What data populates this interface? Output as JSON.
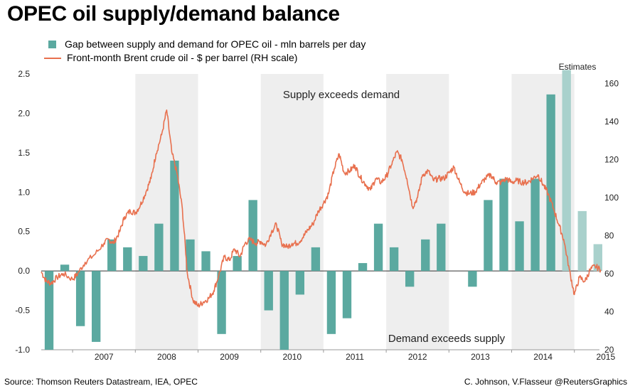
{
  "title": "OPEC oil supply/demand balance",
  "legend": {
    "bars": "Gap between supply and demand for OPEC oil - mln barrels per day",
    "line": "Front-month Brent crude oil - $ per barrel (RH scale)"
  },
  "footer": {
    "source": "Source: Thomson Reuters Datastream, IEA, OPEC",
    "credit": "C. Johnson, V.Flasseur @ReutersGraphics"
  },
  "chart_data": {
    "type": "bar",
    "title": "OPEC oil supply/demand balance",
    "x_range": [
      2006.5,
      2015.4
    ],
    "years": [
      "2007",
      "2008",
      "2009",
      "2010",
      "2011",
      "2012",
      "2013",
      "2014",
      "2015"
    ],
    "shaded_years": [
      2008,
      2010,
      2012,
      2014
    ],
    "estimates_from": 2015.0,
    "left_axis": {
      "label": "mln barrels per day",
      "ylim": [
        -1.0,
        2.5
      ],
      "ticks": [
        "2.5",
        "2.0",
        "1.5",
        "1.0",
        "0.5",
        "0.0",
        "-0.5",
        "-1.0"
      ]
    },
    "right_axis": {
      "label": "$ per barrel",
      "ylim": [
        20,
        165
      ],
      "ticks": [
        "160",
        "140",
        "120",
        "100",
        "80",
        "60",
        "40",
        "20"
      ]
    },
    "annotations": {
      "supply": "Supply exceeds demand",
      "demand": "Demand exceeds supply",
      "estimates": "Estimates"
    },
    "series": [
      {
        "name": "Gap between supply and demand for OPEC oil - mln barrels per day",
        "type": "bar",
        "color": "#5ba9a0",
        "estimate_color": "#a9d1cc",
        "points": [
          {
            "x": 2006.625,
            "v": -1.0
          },
          {
            "x": 2006.875,
            "v": 0.08
          },
          {
            "x": 2007.125,
            "v": -0.7
          },
          {
            "x": 2007.375,
            "v": -0.9
          },
          {
            "x": 2007.625,
            "v": 0.4
          },
          {
            "x": 2007.875,
            "v": 0.3
          },
          {
            "x": 2008.125,
            "v": 0.19
          },
          {
            "x": 2008.375,
            "v": 0.6
          },
          {
            "x": 2008.625,
            "v": 1.4
          },
          {
            "x": 2008.875,
            "v": 0.4
          },
          {
            "x": 2009.125,
            "v": 0.25
          },
          {
            "x": 2009.375,
            "v": -0.8
          },
          {
            "x": 2009.625,
            "v": 0.19
          },
          {
            "x": 2009.875,
            "v": 0.9
          },
          {
            "x": 2010.125,
            "v": -0.5
          },
          {
            "x": 2010.375,
            "v": -1.0
          },
          {
            "x": 2010.625,
            "v": -0.3
          },
          {
            "x": 2010.875,
            "v": 0.3
          },
          {
            "x": 2011.125,
            "v": -0.8
          },
          {
            "x": 2011.375,
            "v": -0.6
          },
          {
            "x": 2011.625,
            "v": 0.1
          },
          {
            "x": 2011.875,
            "v": 0.6
          },
          {
            "x": 2012.125,
            "v": 0.3
          },
          {
            "x": 2012.375,
            "v": -0.2
          },
          {
            "x": 2012.625,
            "v": 0.4
          },
          {
            "x": 2012.875,
            "v": 0.6
          },
          {
            "x": 2013.375,
            "v": -0.2
          },
          {
            "x": 2013.625,
            "v": 0.9
          },
          {
            "x": 2013.875,
            "v": 1.17
          },
          {
            "x": 2014.125,
            "v": 0.63
          },
          {
            "x": 2014.375,
            "v": 1.17
          },
          {
            "x": 2014.625,
            "v": 2.24
          },
          {
            "x": 2014.875,
            "v": 2.55,
            "estimate": true
          },
          {
            "x": 2015.125,
            "v": 0.76,
            "estimate": true
          },
          {
            "x": 2015.375,
            "v": 0.34,
            "estimate": true
          }
        ]
      },
      {
        "name": "Front-month Brent crude oil - $ per barrel (RH scale)",
        "type": "line",
        "axis": "right",
        "color": "#e8704e",
        "points": [
          [
            2006.5,
            61
          ],
          [
            2006.58,
            56
          ],
          [
            2006.66,
            55
          ],
          [
            2006.75,
            58
          ],
          [
            2006.85,
            60
          ],
          [
            2007.0,
            57
          ],
          [
            2007.08,
            60
          ],
          [
            2007.2,
            66
          ],
          [
            2007.35,
            70
          ],
          [
            2007.5,
            76
          ],
          [
            2007.58,
            78
          ],
          [
            2007.65,
            76
          ],
          [
            2007.75,
            82
          ],
          [
            2007.83,
            90
          ],
          [
            2007.92,
            93
          ],
          [
            2008.0,
            92
          ],
          [
            2008.08,
            96
          ],
          [
            2008.17,
            103
          ],
          [
            2008.25,
            110
          ],
          [
            2008.33,
            123
          ],
          [
            2008.42,
            133
          ],
          [
            2008.5,
            146
          ],
          [
            2008.58,
            124
          ],
          [
            2008.67,
            112
          ],
          [
            2008.75,
            94
          ],
          [
            2008.83,
            60
          ],
          [
            2008.92,
            46
          ],
          [
            2009.0,
            43
          ],
          [
            2009.08,
            45
          ],
          [
            2009.17,
            47
          ],
          [
            2009.25,
            51
          ],
          [
            2009.33,
            59
          ],
          [
            2009.42,
            69
          ],
          [
            2009.5,
            67
          ],
          [
            2009.58,
            73
          ],
          [
            2009.67,
            69
          ],
          [
            2009.75,
            76
          ],
          [
            2009.83,
            78
          ],
          [
            2009.92,
            76
          ],
          [
            2010.0,
            77
          ],
          [
            2010.08,
            75
          ],
          [
            2010.17,
            82
          ],
          [
            2010.25,
            86
          ],
          [
            2010.33,
            76
          ],
          [
            2010.42,
            74
          ],
          [
            2010.5,
            76
          ],
          [
            2010.58,
            76
          ],
          [
            2010.67,
            79
          ],
          [
            2010.75,
            83
          ],
          [
            2010.83,
            86
          ],
          [
            2010.92,
            93
          ],
          [
            2011.0,
            97
          ],
          [
            2011.08,
            102
          ],
          [
            2011.17,
            115
          ],
          [
            2011.25,
            123
          ],
          [
            2011.33,
            113
          ],
          [
            2011.42,
            114
          ],
          [
            2011.5,
            117
          ],
          [
            2011.58,
            111
          ],
          [
            2011.67,
            107
          ],
          [
            2011.75,
            104
          ],
          [
            2011.83,
            110
          ],
          [
            2011.92,
            108
          ],
          [
            2012.0,
            111
          ],
          [
            2012.08,
            117
          ],
          [
            2012.17,
            124
          ],
          [
            2012.25,
            120
          ],
          [
            2012.33,
            110
          ],
          [
            2012.42,
            95
          ],
          [
            2012.5,
            100
          ],
          [
            2012.58,
            112
          ],
          [
            2012.67,
            114
          ],
          [
            2012.75,
            109
          ],
          [
            2012.83,
            110
          ],
          [
            2012.92,
            110
          ],
          [
            2013.0,
            113
          ],
          [
            2013.08,
            116
          ],
          [
            2013.17,
            108
          ],
          [
            2013.25,
            103
          ],
          [
            2013.33,
            102
          ],
          [
            2013.42,
            103
          ],
          [
            2013.5,
            107
          ],
          [
            2013.58,
            110
          ],
          [
            2013.67,
            112
          ],
          [
            2013.75,
            108
          ],
          [
            2013.83,
            108
          ],
          [
            2013.92,
            110
          ],
          [
            2014.0,
            108
          ],
          [
            2014.08,
            109
          ],
          [
            2014.17,
            108
          ],
          [
            2014.25,
            108
          ],
          [
            2014.33,
            110
          ],
          [
            2014.42,
            112
          ],
          [
            2014.5,
            107
          ],
          [
            2014.58,
            102
          ],
          [
            2014.67,
            94
          ],
          [
            2014.75,
            86
          ],
          [
            2014.83,
            78
          ],
          [
            2014.92,
            62
          ],
          [
            2015.0,
            49
          ],
          [
            2015.08,
            58
          ],
          [
            2015.17,
            56
          ],
          [
            2015.25,
            62
          ],
          [
            2015.33,
            64
          ],
          [
            2015.42,
            62
          ]
        ]
      }
    ]
  }
}
